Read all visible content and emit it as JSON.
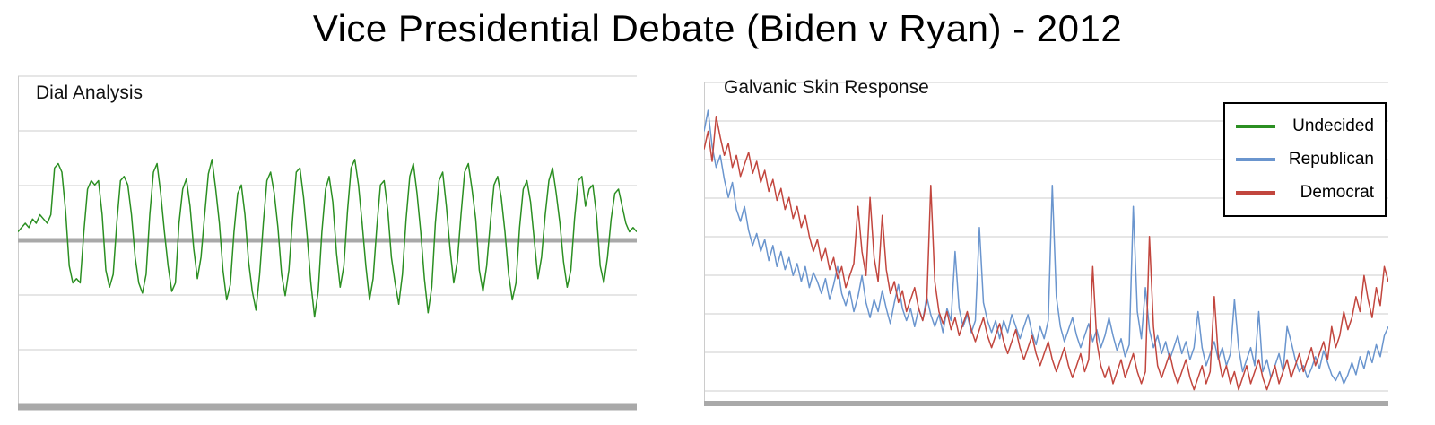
{
  "title": "Vice Presidential Debate (Biden v Ryan) - 2012",
  "colors": {
    "undecided_green": "#2b8f22",
    "republican_blue": "#6a95ce",
    "democrat_red": "#c2463e",
    "gridline": "#cccccc",
    "thick_rule": "#a9a9a9"
  },
  "legend": {
    "position": "top-right",
    "items": [
      {
        "label": "Undecided",
        "color": "#2b8f22"
      },
      {
        "label": "Republican",
        "color": "#6a95ce"
      },
      {
        "label": "Democrat",
        "color": "#c2463e"
      }
    ]
  },
  "chart_data": [
    {
      "type": "line",
      "title": "Dial Analysis",
      "xlabel": "",
      "ylabel": "",
      "x_axis_ticks_visible": false,
      "y_axis_ticks_visible": false,
      "grid": "horizontal",
      "baseline": 0,
      "ylim": [
        -1,
        1
      ],
      "series": [
        {
          "name": "Undecided",
          "color": "#2b8f22",
          "values": [
            0.1,
            0.15,
            0.2,
            0.15,
            0.25,
            0.2,
            0.3,
            0.25,
            0.2,
            0.3,
            0.85,
            0.9,
            0.8,
            0.35,
            -0.3,
            -0.5,
            -0.45,
            -0.5,
            0.1,
            0.6,
            0.7,
            0.65,
            0.7,
            0.3,
            -0.35,
            -0.55,
            -0.4,
            0.2,
            0.7,
            0.75,
            0.65,
            0.3,
            -0.2,
            -0.5,
            -0.62,
            -0.4,
            0.3,
            0.8,
            0.9,
            0.55,
            0.1,
            -0.3,
            -0.6,
            -0.5,
            0.2,
            0.6,
            0.72,
            0.4,
            -0.1,
            -0.45,
            -0.2,
            0.3,
            0.78,
            0.95,
            0.6,
            0.2,
            -0.35,
            -0.7,
            -0.52,
            0.1,
            0.55,
            0.65,
            0.3,
            -0.25,
            -0.6,
            -0.82,
            -0.4,
            0.2,
            0.7,
            0.8,
            0.55,
            0.15,
            -0.4,
            -0.65,
            -0.35,
            0.25,
            0.8,
            0.85,
            0.5,
            0.05,
            -0.5,
            -0.9,
            -0.6,
            0.1,
            0.6,
            0.75,
            0.45,
            -0.15,
            -0.55,
            -0.3,
            0.35,
            0.85,
            0.95,
            0.65,
            0.2,
            -0.3,
            -0.7,
            -0.45,
            0.15,
            0.65,
            0.7,
            0.35,
            -0.2,
            -0.5,
            -0.75,
            -0.4,
            0.25,
            0.75,
            0.9,
            0.55,
            0.1,
            -0.45,
            -0.85,
            -0.55,
            0.2,
            0.7,
            0.8,
            0.4,
            -0.1,
            -0.5,
            -0.25,
            0.3,
            0.8,
            0.9,
            0.6,
            0.25,
            -0.35,
            -0.6,
            -0.3,
            0.2,
            0.65,
            0.75,
            0.5,
            0.1,
            -0.4,
            -0.7,
            -0.5,
            0.15,
            0.6,
            0.7,
            0.45,
            0.0,
            -0.45,
            -0.2,
            0.3,
            0.7,
            0.85,
            0.55,
            0.2,
            -0.25,
            -0.55,
            -0.35,
            0.25,
            0.7,
            0.75,
            0.4,
            0.6,
            0.65,
            0.3,
            -0.3,
            -0.5,
            -0.2,
            0.25,
            0.55,
            0.6,
            0.4,
            0.2,
            0.1,
            0.15,
            0.1
          ]
        }
      ]
    },
    {
      "type": "line",
      "title": "Galvanic Skin Response",
      "xlabel": "",
      "ylabel": "",
      "x_axis_ticks_visible": false,
      "y_axis_ticks_visible": false,
      "grid": "horizontal",
      "ylim": [
        0,
        1
      ],
      "legend_position": "top-right",
      "series": [
        {
          "name": "Republican",
          "color": "#6a95ce",
          "values": [
            0.9,
            0.97,
            0.85,
            0.78,
            0.82,
            0.74,
            0.68,
            0.73,
            0.64,
            0.6,
            0.65,
            0.57,
            0.52,
            0.56,
            0.5,
            0.54,
            0.47,
            0.52,
            0.45,
            0.5,
            0.44,
            0.48,
            0.42,
            0.46,
            0.4,
            0.45,
            0.38,
            0.43,
            0.4,
            0.36,
            0.41,
            0.34,
            0.39,
            0.45,
            0.36,
            0.32,
            0.37,
            0.3,
            0.35,
            0.42,
            0.33,
            0.28,
            0.34,
            0.3,
            0.37,
            0.31,
            0.26,
            0.33,
            0.39,
            0.31,
            0.27,
            0.31,
            0.25,
            0.31,
            0.27,
            0.35,
            0.29,
            0.25,
            0.29,
            0.23,
            0.31,
            0.27,
            0.5,
            0.31,
            0.25,
            0.29,
            0.23,
            0.27,
            0.58,
            0.33,
            0.27,
            0.23,
            0.27,
            0.21,
            0.27,
            0.23,
            0.29,
            0.25,
            0.21,
            0.25,
            0.29,
            0.23,
            0.19,
            0.25,
            0.21,
            0.27,
            0.72,
            0.35,
            0.25,
            0.2,
            0.24,
            0.28,
            0.22,
            0.18,
            0.22,
            0.26,
            0.2,
            0.24,
            0.18,
            0.22,
            0.28,
            0.22,
            0.17,
            0.21,
            0.15,
            0.19,
            0.65,
            0.3,
            0.21,
            0.38,
            0.24,
            0.18,
            0.22,
            0.16,
            0.2,
            0.14,
            0.18,
            0.22,
            0.16,
            0.2,
            0.14,
            0.18,
            0.3,
            0.18,
            0.12,
            0.16,
            0.2,
            0.14,
            0.18,
            0.12,
            0.16,
            0.34,
            0.18,
            0.1,
            0.14,
            0.18,
            0.12,
            0.3,
            0.1,
            0.14,
            0.08,
            0.12,
            0.16,
            0.1,
            0.25,
            0.2,
            0.14,
            0.1,
            0.12,
            0.08,
            0.11,
            0.15,
            0.11,
            0.17,
            0.13,
            0.09,
            0.07,
            0.1,
            0.06,
            0.09,
            0.13,
            0.09,
            0.15,
            0.11,
            0.17,
            0.13,
            0.19,
            0.15,
            0.22,
            0.25
          ]
        },
        {
          "name": "Democrat",
          "color": "#c2463e",
          "values": [
            0.84,
            0.9,
            0.8,
            0.95,
            0.88,
            0.82,
            0.86,
            0.78,
            0.82,
            0.75,
            0.79,
            0.83,
            0.76,
            0.8,
            0.73,
            0.77,
            0.7,
            0.74,
            0.67,
            0.71,
            0.64,
            0.68,
            0.61,
            0.65,
            0.58,
            0.62,
            0.55,
            0.5,
            0.54,
            0.47,
            0.51,
            0.44,
            0.48,
            0.41,
            0.45,
            0.38,
            0.42,
            0.46,
            0.65,
            0.5,
            0.42,
            0.68,
            0.48,
            0.4,
            0.62,
            0.44,
            0.36,
            0.4,
            0.33,
            0.37,
            0.3,
            0.34,
            0.38,
            0.31,
            0.27,
            0.33,
            0.72,
            0.4,
            0.3,
            0.26,
            0.3,
            0.24,
            0.28,
            0.22,
            0.26,
            0.3,
            0.24,
            0.2,
            0.24,
            0.28,
            0.22,
            0.18,
            0.22,
            0.26,
            0.2,
            0.16,
            0.2,
            0.24,
            0.18,
            0.14,
            0.18,
            0.22,
            0.16,
            0.12,
            0.16,
            0.2,
            0.14,
            0.1,
            0.14,
            0.18,
            0.12,
            0.08,
            0.12,
            0.16,
            0.1,
            0.14,
            0.45,
            0.2,
            0.12,
            0.08,
            0.12,
            0.06,
            0.1,
            0.14,
            0.08,
            0.12,
            0.16,
            0.1,
            0.06,
            0.1,
            0.55,
            0.25,
            0.12,
            0.08,
            0.12,
            0.16,
            0.1,
            0.06,
            0.1,
            0.14,
            0.08,
            0.04,
            0.08,
            0.12,
            0.06,
            0.1,
            0.35,
            0.15,
            0.08,
            0.12,
            0.06,
            0.1,
            0.04,
            0.08,
            0.12,
            0.06,
            0.1,
            0.14,
            0.08,
            0.04,
            0.08,
            0.12,
            0.06,
            0.1,
            0.14,
            0.08,
            0.12,
            0.16,
            0.1,
            0.14,
            0.18,
            0.12,
            0.16,
            0.2,
            0.14,
            0.25,
            0.18,
            0.22,
            0.3,
            0.24,
            0.28,
            0.35,
            0.3,
            0.42,
            0.34,
            0.28,
            0.38,
            0.32,
            0.45,
            0.4
          ]
        }
      ]
    }
  ]
}
